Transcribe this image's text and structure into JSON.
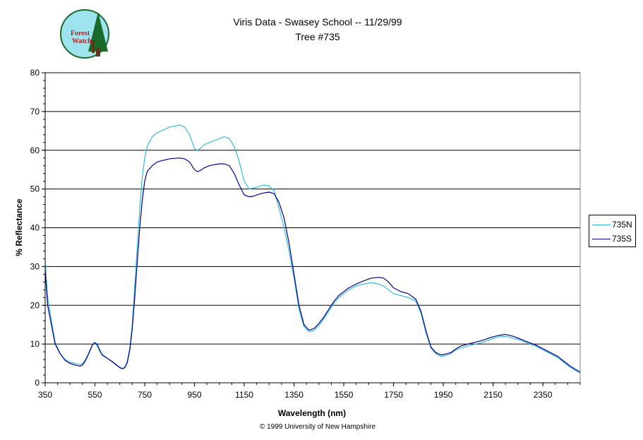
{
  "title": "Viris Data - Swasey School -- 11/29/99",
  "subtitle": "Tree #735",
  "footer": "© 1999 University of New Hampshire",
  "logo": {
    "text_line1": "Forest",
    "text_line2": "Watch",
    "colors": {
      "circle": "#9fe3ef",
      "tree": "#1a6a2a",
      "text": "#b32020"
    }
  },
  "chart_data": {
    "type": "line",
    "title": "Viris Data - Swasey School -- 11/29/99",
    "subtitle": "Tree #735",
    "xlabel": "Wavelength (nm)",
    "ylabel": "% Reflectance",
    "xlim": [
      350,
      2500
    ],
    "ylim": [
      0,
      80
    ],
    "x_ticks": [
      350,
      550,
      750,
      950,
      1150,
      1350,
      1550,
      1750,
      1950,
      2150,
      2350
    ],
    "y_ticks": [
      0,
      10,
      20,
      30,
      40,
      50,
      60,
      70,
      80
    ],
    "grid": "horizontal",
    "legend_position": "right",
    "series": [
      {
        "name": "735N",
        "color": "#33bbdd",
        "x": [
          350,
          360,
          375,
          390,
          410,
          430,
          450,
          470,
          490,
          500,
          510,
          520,
          530,
          540,
          550,
          560,
          570,
          580,
          600,
          620,
          640,
          650,
          660,
          670,
          680,
          690,
          700,
          710,
          720,
          730,
          740,
          750,
          760,
          780,
          800,
          850,
          890,
          910,
          930,
          950,
          960,
          975,
          990,
          1010,
          1030,
          1050,
          1070,
          1090,
          1110,
          1130,
          1150,
          1170,
          1190,
          1210,
          1230,
          1250,
          1270,
          1290,
          1310,
          1330,
          1350,
          1370,
          1390,
          1410,
          1430,
          1450,
          1470,
          1490,
          1510,
          1530,
          1550,
          1570,
          1600,
          1630,
          1660,
          1690,
          1710,
          1730,
          1750,
          1780,
          1810,
          1840,
          1860,
          1880,
          1900,
          1920,
          1940,
          1960,
          1980,
          2000,
          2020,
          2050,
          2080,
          2110,
          2140,
          2170,
          2200,
          2230,
          2260,
          2290,
          2320,
          2350,
          2380,
          2410,
          2440,
          2460,
          2480,
          2500
        ],
        "y": [
          31,
          22,
          16,
          10.5,
          7.5,
          6,
          5.3,
          5,
          4.7,
          5,
          5.8,
          7,
          8.5,
          9.8,
          10.2,
          9.5,
          8,
          7,
          6.3,
          5.5,
          4.5,
          4,
          3.7,
          4,
          5.5,
          9,
          15,
          25,
          35,
          45,
          53,
          58,
          61,
          63.5,
          64.5,
          66,
          66.5,
          66,
          64,
          60.5,
          60,
          60.5,
          61.5,
          62,
          62.5,
          63,
          63.5,
          63,
          61,
          57,
          52,
          50,
          50.3,
          50.7,
          51,
          50.8,
          49.5,
          45,
          40,
          34,
          27,
          19,
          14.5,
          13.2,
          13.5,
          14.8,
          16.5,
          18.5,
          20.5,
          22,
          23,
          24,
          25,
          25.5,
          25.8,
          25.5,
          25,
          24,
          23,
          22.5,
          22,
          21,
          18,
          13,
          9,
          7.5,
          6.8,
          7,
          7.5,
          8.5,
          9,
          9.5,
          10,
          10.5,
          11.2,
          11.8,
          12,
          11.5,
          11,
          10.2,
          9.5,
          8.5,
          7.5,
          6.5,
          5,
          4,
          3.2,
          2.5
        ]
      },
      {
        "name": "735S",
        "color": "#00008b",
        "x": [
          350,
          360,
          375,
          390,
          410,
          430,
          450,
          470,
          490,
          500,
          510,
          520,
          530,
          540,
          550,
          560,
          570,
          580,
          600,
          620,
          640,
          650,
          660,
          670,
          680,
          690,
          700,
          710,
          720,
          730,
          740,
          750,
          760,
          780,
          800,
          850,
          890,
          910,
          930,
          950,
          960,
          975,
          990,
          1010,
          1030,
          1050,
          1070,
          1090,
          1110,
          1130,
          1150,
          1170,
          1190,
          1210,
          1230,
          1250,
          1270,
          1290,
          1310,
          1330,
          1350,
          1370,
          1390,
          1410,
          1430,
          1450,
          1470,
          1490,
          1510,
          1530,
          1550,
          1570,
          1600,
          1630,
          1660,
          1690,
          1710,
          1730,
          1750,
          1780,
          1810,
          1840,
          1860,
          1880,
          1900,
          1920,
          1940,
          1960,
          1980,
          2000,
          2020,
          2050,
          2080,
          2110,
          2140,
          2170,
          2200,
          2230,
          2260,
          2290,
          2320,
          2350,
          2380,
          2410,
          2440,
          2460,
          2480,
          2500
        ],
        "y": [
          29,
          20,
          15,
          10,
          7.5,
          5.8,
          5,
          4.6,
          4.3,
          4.6,
          5.5,
          6.8,
          8.3,
          9.8,
          10.4,
          9.8,
          8.3,
          7.2,
          6.3,
          5.4,
          4.4,
          3.9,
          3.6,
          3.9,
          5.2,
          8.5,
          14,
          22,
          31,
          40,
          47,
          52,
          54.5,
          56,
          57,
          57.8,
          58,
          57.8,
          57,
          55,
          54.5,
          54.8,
          55.5,
          56,
          56.3,
          56.5,
          56.5,
          56,
          54,
          51,
          48.5,
          48,
          48.2,
          48.7,
          49,
          49.2,
          48.8,
          46.5,
          42.5,
          36,
          28,
          20,
          15,
          13.6,
          14,
          15.3,
          17,
          19,
          21,
          22.5,
          23.5,
          24.5,
          25.5,
          26.3,
          27,
          27.2,
          27,
          26,
          24.5,
          23.5,
          23,
          21.5,
          18.5,
          13.5,
          9.2,
          7.8,
          7.2,
          7.4,
          7.8,
          8.7,
          9.5,
          10,
          10.5,
          11,
          11.7,
          12.2,
          12.5,
          12,
          11.3,
          10.5,
          9.8,
          8.8,
          7.8,
          6.8,
          5.3,
          4.3,
          3.5,
          2.8
        ]
      }
    ]
  }
}
